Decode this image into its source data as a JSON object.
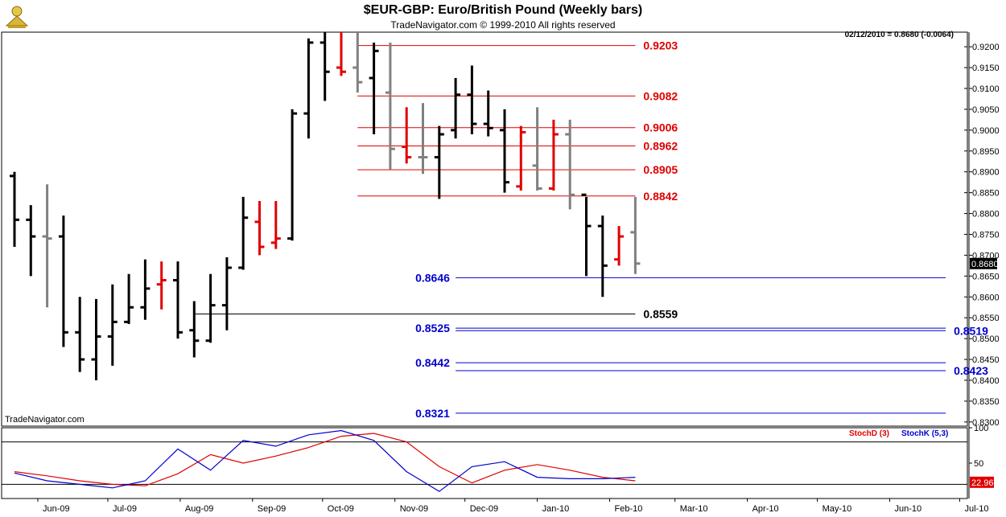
{
  "header": {
    "title": "$EUR-GBP:  Euro/British Pound  (Weekly bars)",
    "copyright": "TradeNavigator.com © 1999-2010 All rights reserved",
    "quote": "02/12/2010 = 0.8680 (-0.0064)",
    "brand": "TradeNavigator.com"
  },
  "colors": {
    "up_bar": "#000000",
    "down_bar": "#e00000",
    "gray_bar": "#808080",
    "resistance": "#e00000",
    "support": "#0000cc",
    "stoch_d": "#e00000",
    "stoch_k": "#0000cc",
    "last_marker": "#000000",
    "stoch_marker": "#e00000"
  },
  "chart_data": [
    {
      "type": "ohlc",
      "ylim": [
        0.829,
        0.9235
      ],
      "yticks": [
        "0.9200",
        "0.9150",
        "0.9100",
        "0.9050",
        "0.9000",
        "0.8950",
        "0.8900",
        "0.8850",
        "0.8800",
        "0.8750",
        "0.8700",
        "0.8650",
        "0.8600",
        "0.8550",
        "0.8500",
        "0.8450",
        "0.8400",
        "0.8350",
        "0.8300"
      ],
      "xticks": [
        "Jun-09",
        "Jul-09",
        "Aug-09",
        "Sep-09",
        "Oct-09",
        "Nov-09",
        "Dec-09",
        "Jan-10",
        "Feb-10",
        "Mar-10",
        "Apr-10",
        "May-10",
        "Jun-10",
        "Jul-10"
      ],
      "last_price": "0.8680",
      "bars": [
        {
          "x": "2009-05-22",
          "o": 0.889,
          "h": 0.89,
          "l": 0.872,
          "c": 0.8785,
          "color": "black"
        },
        {
          "x": "2009-05-29",
          "o": 0.8785,
          "h": 0.882,
          "l": 0.865,
          "c": 0.8745,
          "color": "black"
        },
        {
          "x": "2009-06-05",
          "o": 0.8745,
          "h": 0.887,
          "l": 0.8575,
          "c": 0.874,
          "color": "gray"
        },
        {
          "x": "2009-06-12",
          "o": 0.8745,
          "h": 0.8795,
          "l": 0.848,
          "c": 0.8515,
          "color": "black"
        },
        {
          "x": "2009-06-19",
          "o": 0.8515,
          "h": 0.86,
          "l": 0.842,
          "c": 0.845,
          "color": "black"
        },
        {
          "x": "2009-06-26",
          "o": 0.845,
          "h": 0.8595,
          "l": 0.84,
          "c": 0.8505,
          "color": "black"
        },
        {
          "x": "2009-07-03",
          "o": 0.8505,
          "h": 0.863,
          "l": 0.8435,
          "c": 0.854,
          "color": "black"
        },
        {
          "x": "2009-07-10",
          "o": 0.854,
          "h": 0.8655,
          "l": 0.8535,
          "c": 0.8575,
          "color": "black"
        },
        {
          "x": "2009-07-17",
          "o": 0.8575,
          "h": 0.869,
          "l": 0.8545,
          "c": 0.862,
          "color": "black"
        },
        {
          "x": "2009-07-24",
          "o": 0.863,
          "h": 0.8685,
          "l": 0.857,
          "c": 0.864,
          "color": "red"
        },
        {
          "x": "2009-07-31",
          "o": 0.864,
          "h": 0.8685,
          "l": 0.85,
          "c": 0.8515,
          "color": "black"
        },
        {
          "x": "2009-08-07",
          "o": 0.852,
          "h": 0.859,
          "l": 0.8455,
          "c": 0.8495,
          "color": "black"
        },
        {
          "x": "2009-08-14",
          "o": 0.8495,
          "h": 0.8655,
          "l": 0.849,
          "c": 0.858,
          "color": "black"
        },
        {
          "x": "2009-08-21",
          "o": 0.858,
          "h": 0.8695,
          "l": 0.852,
          "c": 0.867,
          "color": "black"
        },
        {
          "x": "2009-08-28",
          "o": 0.867,
          "h": 0.884,
          "l": 0.8665,
          "c": 0.879,
          "color": "black"
        },
        {
          "x": "2009-09-04",
          "o": 0.878,
          "h": 0.883,
          "l": 0.87,
          "c": 0.872,
          "color": "red"
        },
        {
          "x": "2009-09-11",
          "o": 0.873,
          "h": 0.883,
          "l": 0.8715,
          "c": 0.874,
          "color": "red"
        },
        {
          "x": "2009-09-18",
          "o": 0.874,
          "h": 0.905,
          "l": 0.8735,
          "c": 0.904,
          "color": "black"
        },
        {
          "x": "2009-09-25",
          "o": 0.904,
          "h": 0.922,
          "l": 0.898,
          "c": 0.921,
          "color": "black"
        },
        {
          "x": "2009-10-02",
          "o": 0.921,
          "h": 0.9235,
          "l": 0.907,
          "c": 0.914,
          "color": "black"
        },
        {
          "x": "2009-10-09",
          "o": 0.915,
          "h": 0.9235,
          "l": 0.913,
          "c": 0.914,
          "color": "red"
        },
        {
          "x": "2009-10-16",
          "o": 0.915,
          "h": 0.9235,
          "l": 0.909,
          "c": 0.9115,
          "color": "gray"
        },
        {
          "x": "2009-10-23",
          "o": 0.9125,
          "h": 0.921,
          "l": 0.899,
          "c": 0.919,
          "color": "black"
        },
        {
          "x": "2009-10-30",
          "o": 0.909,
          "h": 0.921,
          "l": 0.8905,
          "c": 0.8955,
          "color": "gray"
        },
        {
          "x": "2009-11-06",
          "o": 0.896,
          "h": 0.9055,
          "l": 0.892,
          "c": 0.8935,
          "color": "red"
        },
        {
          "x": "2009-11-13",
          "o": 0.8935,
          "h": 0.9065,
          "l": 0.8895,
          "c": 0.8935,
          "color": "gray"
        },
        {
          "x": "2009-11-20",
          "o": 0.8935,
          "h": 0.901,
          "l": 0.8835,
          "c": 0.899,
          "color": "black"
        },
        {
          "x": "2009-11-27",
          "o": 0.9,
          "h": 0.9125,
          "l": 0.898,
          "c": 0.9085,
          "color": "black"
        },
        {
          "x": "2009-12-04",
          "o": 0.9085,
          "h": 0.9155,
          "l": 0.899,
          "c": 0.9015,
          "color": "black"
        },
        {
          "x": "2009-12-11",
          "o": 0.9015,
          "h": 0.9095,
          "l": 0.8985,
          "c": 0.9005,
          "color": "black"
        },
        {
          "x": "2009-12-18",
          "o": 0.9,
          "h": 0.905,
          "l": 0.885,
          "c": 0.8875,
          "color": "black"
        },
        {
          "x": "2009-12-25",
          "o": 0.8865,
          "h": 0.901,
          "l": 0.8855,
          "c": 0.8995,
          "color": "red"
        },
        {
          "x": "2010-01-01",
          "o": 0.8915,
          "h": 0.9055,
          "l": 0.8855,
          "c": 0.886,
          "color": "gray"
        },
        {
          "x": "2010-01-08",
          "o": 0.886,
          "h": 0.9025,
          "l": 0.8855,
          "c": 0.899,
          "color": "red"
        },
        {
          "x": "2010-01-15",
          "o": 0.899,
          "h": 0.9025,
          "l": 0.881,
          "c": 0.8845,
          "color": "gray"
        },
        {
          "x": "2010-01-22",
          "o": 0.8845,
          "h": 0.884,
          "l": 0.865,
          "c": 0.877,
          "color": "black"
        },
        {
          "x": "2010-01-29",
          "o": 0.877,
          "h": 0.8795,
          "l": 0.86,
          "c": 0.8675,
          "color": "black"
        },
        {
          "x": "2010-02-05",
          "o": 0.869,
          "h": 0.877,
          "l": 0.8675,
          "c": 0.8745,
          "color": "red"
        },
        {
          "x": "2010-02-12",
          "o": 0.8755,
          "h": 0.884,
          "l": 0.8655,
          "c": 0.868,
          "color": "gray"
        }
      ],
      "levels": [
        {
          "label": "0.9203",
          "value": 0.9203,
          "color": "red",
          "from": "2009-10-16",
          "to": "2010-02-12",
          "label_side": "right"
        },
        {
          "label": "0.9082",
          "value": 0.9082,
          "color": "red",
          "from": "2009-10-16",
          "to": "2010-02-12",
          "label_side": "right"
        },
        {
          "label": "0.9006",
          "value": 0.9006,
          "color": "red",
          "from": "2009-10-16",
          "to": "2010-02-12",
          "label_side": "right"
        },
        {
          "label": "0.8962",
          "value": 0.8962,
          "color": "red",
          "from": "2009-10-16",
          "to": "2010-02-12",
          "label_side": "right"
        },
        {
          "label": "0.8905",
          "value": 0.8905,
          "color": "red",
          "from": "2009-10-16",
          "to": "2010-02-12",
          "label_side": "right"
        },
        {
          "label": "0.8842",
          "value": 0.8842,
          "color": "red",
          "from": "2009-10-16",
          "to": "2010-02-12",
          "label_side": "right"
        },
        {
          "label": "0.8646",
          "value": 0.8646,
          "color": "blue",
          "from": "2009-11-27",
          "to": "2010-06-25",
          "label_side": "left"
        },
        {
          "label": "0.8559",
          "value": 0.8559,
          "color": "black",
          "from": "2009-08-07",
          "to": "2010-02-12",
          "label_side": "right"
        },
        {
          "label": "0.8525",
          "value": 0.8525,
          "color": "blue",
          "from": "2009-11-27",
          "to": "2010-06-25",
          "label_side": "left"
        },
        {
          "label": "0.8519",
          "value": 0.8519,
          "color": "blue",
          "from": "2009-11-27",
          "to": "2010-06-25",
          "label_side": "right"
        },
        {
          "label": "0.8442",
          "value": 0.8442,
          "color": "blue",
          "from": "2009-11-27",
          "to": "2010-06-25",
          "label_side": "left"
        },
        {
          "label": "0.8423",
          "value": 0.8423,
          "color": "blue",
          "from": "2009-11-27",
          "to": "2010-06-25",
          "label_side": "right"
        },
        {
          "label": "0.8321",
          "value": 0.8321,
          "color": "blue",
          "from": "2009-11-27",
          "to": "2010-06-25",
          "label_side": "left"
        }
      ]
    },
    {
      "type": "line",
      "ylim": [
        0,
        100
      ],
      "yticks": [
        "100",
        "50"
      ],
      "hlines": [
        80,
        20
      ],
      "last_value": "22.96",
      "legend": [
        "StochD (3)",
        "StochK (5,3)"
      ],
      "series": [
        {
          "name": "StochD (3)",
          "color": "red",
          "x": [
            "2009-05-22",
            "2009-06-05",
            "2009-06-19",
            "2009-07-03",
            "2009-07-17",
            "2009-07-31",
            "2009-08-14",
            "2009-08-28",
            "2009-09-11",
            "2009-09-25",
            "2009-10-09",
            "2009-10-23",
            "2009-11-06",
            "2009-11-20",
            "2009-12-04",
            "2009-12-18",
            "2010-01-01",
            "2010-01-15",
            "2010-01-29",
            "2010-02-12"
          ],
          "values": [
            38,
            32,
            25,
            20,
            18,
            35,
            62,
            50,
            60,
            72,
            88,
            92,
            80,
            45,
            22,
            40,
            48,
            40,
            30,
            25
          ]
        },
        {
          "name": "StochK (5,3)",
          "color": "blue",
          "x": [
            "2009-05-22",
            "2009-06-05",
            "2009-06-19",
            "2009-07-03",
            "2009-07-17",
            "2009-07-31",
            "2009-08-14",
            "2009-08-28",
            "2009-09-11",
            "2009-09-25",
            "2009-10-09",
            "2009-10-23",
            "2009-11-06",
            "2009-11-20",
            "2009-12-04",
            "2009-12-18",
            "2010-01-01",
            "2010-01-15",
            "2010-01-29",
            "2010-02-12"
          ],
          "values": [
            36,
            25,
            20,
            15,
            25,
            70,
            40,
            82,
            74,
            90,
            96,
            82,
            38,
            10,
            45,
            52,
            30,
            28,
            28,
            30
          ]
        }
      ]
    }
  ]
}
